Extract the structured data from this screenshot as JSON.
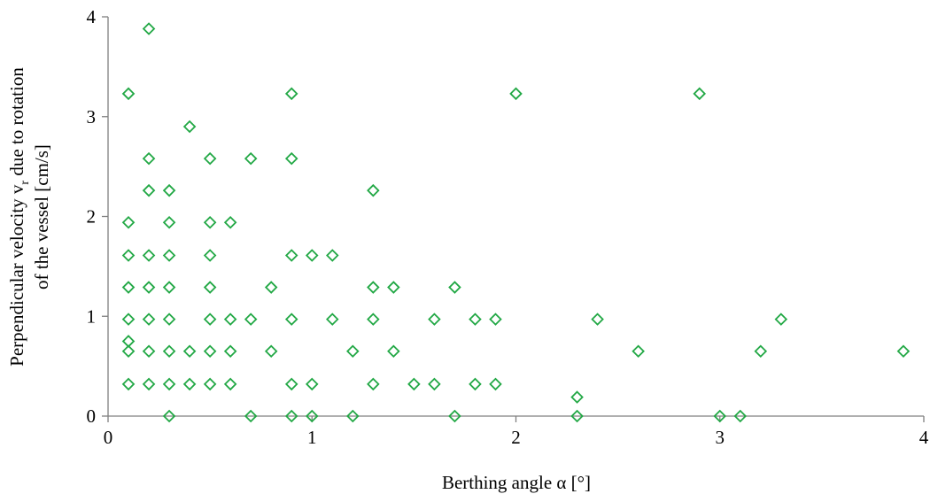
{
  "chart_data": {
    "type": "scatter",
    "xlabel": "Berthing angle α [°]",
    "ylabel_line1_pre": "Perpendicular velocity v",
    "ylabel_line1_sub": "r",
    "ylabel_line1_post": " due to rotation",
    "ylabel_line2": "of the vessel  [cm/s]",
    "xlim": [
      0,
      4
    ],
    "ylim": [
      0,
      4
    ],
    "xticks": [
      0,
      1,
      2,
      3,
      4
    ],
    "yticks": [
      0,
      1,
      2,
      3,
      4
    ],
    "grid": false,
    "marker": "diamond-open",
    "marker_color": "#22a845",
    "series": [
      {
        "points": [
          [
            0.1,
            3.23
          ],
          [
            0.1,
            1.94
          ],
          [
            0.1,
            1.61
          ],
          [
            0.1,
            1.29
          ],
          [
            0.1,
            0.97
          ],
          [
            0.1,
            0.75
          ],
          [
            0.1,
            0.65
          ],
          [
            0.1,
            0.32
          ],
          [
            0.2,
            3.88
          ],
          [
            0.2,
            2.58
          ],
          [
            0.2,
            2.26
          ],
          [
            0.2,
            1.61
          ],
          [
            0.2,
            1.29
          ],
          [
            0.2,
            0.97
          ],
          [
            0.2,
            0.65
          ],
          [
            0.2,
            0.32
          ],
          [
            0.3,
            2.26
          ],
          [
            0.3,
            1.94
          ],
          [
            0.3,
            1.61
          ],
          [
            0.3,
            1.29
          ],
          [
            0.3,
            0.97
          ],
          [
            0.3,
            0.65
          ],
          [
            0.3,
            0.32
          ],
          [
            0.3,
            0.0
          ],
          [
            0.4,
            2.9
          ],
          [
            0.4,
            0.65
          ],
          [
            0.4,
            0.32
          ],
          [
            0.5,
            2.58
          ],
          [
            0.5,
            1.94
          ],
          [
            0.5,
            1.61
          ],
          [
            0.5,
            1.29
          ],
          [
            0.5,
            0.97
          ],
          [
            0.5,
            0.65
          ],
          [
            0.5,
            0.32
          ],
          [
            0.6,
            1.94
          ],
          [
            0.6,
            0.97
          ],
          [
            0.6,
            0.65
          ],
          [
            0.6,
            0.32
          ],
          [
            0.7,
            2.58
          ],
          [
            0.7,
            0.97
          ],
          [
            0.7,
            0.0
          ],
          [
            0.8,
            1.29
          ],
          [
            0.8,
            0.65
          ],
          [
            0.9,
            3.23
          ],
          [
            0.9,
            2.58
          ],
          [
            0.9,
            1.61
          ],
          [
            0.9,
            0.97
          ],
          [
            0.9,
            0.32
          ],
          [
            0.9,
            0.0
          ],
          [
            1.0,
            1.61
          ],
          [
            1.0,
            0.32
          ],
          [
            1.0,
            0.0
          ],
          [
            1.1,
            1.61
          ],
          [
            1.1,
            0.97
          ],
          [
            1.2,
            0.65
          ],
          [
            1.2,
            0.0
          ],
          [
            1.3,
            2.26
          ],
          [
            1.3,
            1.29
          ],
          [
            1.3,
            0.97
          ],
          [
            1.3,
            0.32
          ],
          [
            1.4,
            1.29
          ],
          [
            1.4,
            0.65
          ],
          [
            1.5,
            0.32
          ],
          [
            1.6,
            0.97
          ],
          [
            1.6,
            0.32
          ],
          [
            1.7,
            1.29
          ],
          [
            1.7,
            0.0
          ],
          [
            1.8,
            0.97
          ],
          [
            1.8,
            0.32
          ],
          [
            1.9,
            0.97
          ],
          [
            1.9,
            0.32
          ],
          [
            2.0,
            3.23
          ],
          [
            2.3,
            0.19
          ],
          [
            2.3,
            0.0
          ],
          [
            2.4,
            0.97
          ],
          [
            2.6,
            0.65
          ],
          [
            2.9,
            3.23
          ],
          [
            3.0,
            0.0
          ],
          [
            3.1,
            0.0
          ],
          [
            3.2,
            0.65
          ],
          [
            3.3,
            0.97
          ],
          [
            3.9,
            0.65
          ]
        ]
      }
    ]
  }
}
